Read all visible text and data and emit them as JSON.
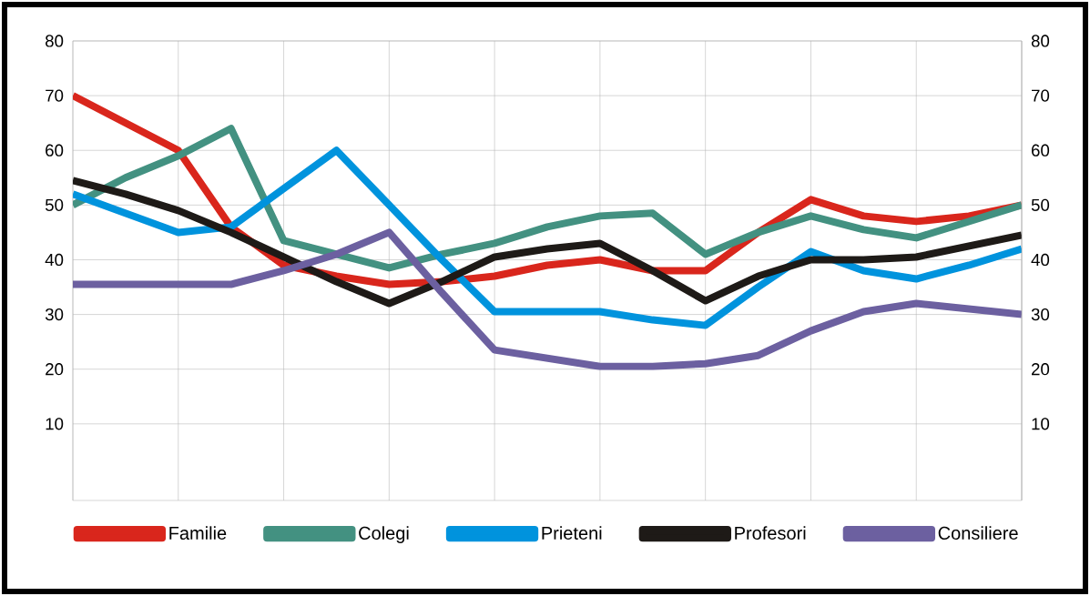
{
  "chart_data": {
    "type": "line",
    "categories": [
      null,
      null,
      null,
      null,
      null,
      null,
      null,
      null,
      null,
      null,
      null,
      null,
      null,
      null,
      null,
      null,
      null,
      null,
      null
    ],
    "ylim": [
      -4,
      80
    ],
    "yticks": [
      10,
      20,
      30,
      40,
      50,
      60,
      70,
      80
    ],
    "y2lim": [
      -4,
      80
    ],
    "y2ticks": [
      10,
      20,
      30,
      40,
      50,
      60,
      70,
      80
    ],
    "tick_labels": "y",
    "grid": true,
    "legend": "bottom",
    "marker": "none",
    "line_style": "solid",
    "series": [
      {
        "name": "Familie",
        "color": "#d9261c",
        "values": [
          70,
          65,
          60,
          46,
          39,
          37,
          35.5,
          36,
          37,
          39,
          40,
          38,
          38,
          45,
          51,
          48,
          47,
          48,
          50
        ]
      },
      {
        "name": "Colegi",
        "color": "#439181",
        "values": [
          50,
          55,
          59,
          64,
          43.5,
          41,
          38.5,
          41,
          43,
          46,
          48,
          48.5,
          41,
          45,
          48,
          45.5,
          44,
          47,
          50
        ]
      },
      {
        "name": "Prieteni",
        "color": "#0093dd",
        "values": [
          52,
          48.5,
          45,
          46,
          53,
          60,
          50,
          40,
          30.5,
          30.5,
          30.5,
          29,
          28,
          35,
          41.5,
          38,
          36.5,
          39,
          42
        ]
      },
      {
        "name": "Profesori",
        "color": "#1e1a17",
        "values": [
          54.5,
          52,
          49,
          45,
          40.5,
          36,
          32,
          36,
          40.5,
          42,
          43,
          38,
          32.5,
          37,
          40,
          40,
          40.5,
          42.5,
          44.5
        ]
      },
      {
        "name": "Consiliere",
        "color": "#6c60a0",
        "values": [
          35.5,
          35.5,
          35.5,
          35.5,
          38,
          41,
          45,
          34,
          23.5,
          22,
          20.5,
          20.5,
          21,
          22.5,
          27,
          30.5,
          32,
          31,
          30
        ]
      }
    ]
  }
}
